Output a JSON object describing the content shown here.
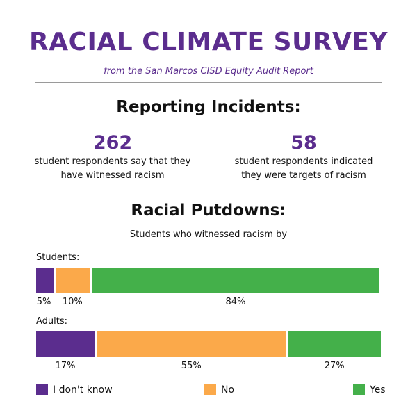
{
  "header": {
    "title": "RACIAL CLIMATE SURVEY",
    "subtitle": "from the San Marcos CISD Equity Audit Report"
  },
  "reporting": {
    "heading": "Reporting Incidents:",
    "stats": [
      {
        "number": "262",
        "line1": "student respondents say that they",
        "line2": "have witnessed racism"
      },
      {
        "number": "58",
        "line1": "student respondents indicated",
        "line2": "they were targets of racism"
      }
    ]
  },
  "colors": {
    "title": "#5b2d8e",
    "dont_know": "#5b2d8e",
    "no": "#fba94a",
    "yes": "#44b04a"
  },
  "chart_data": {
    "type": "bar",
    "orientation": "horizontal",
    "stacked": true,
    "title": "Racial Putdowns:",
    "subtitle": "Students who witnessed racism by",
    "categories": [
      "Students:",
      "Adults:"
    ],
    "series": [
      {
        "name": "I don't know",
        "values": [
          5,
          17
        ],
        "labels": [
          "5%",
          "17%"
        ]
      },
      {
        "name": "No",
        "values": [
          10,
          55
        ],
        "labels": [
          "10%",
          "55%"
        ]
      },
      {
        "name": "Yes",
        "values": [
          84,
          27
        ],
        "labels": [
          "84%",
          "27%"
        ]
      }
    ],
    "legend": "bottom",
    "grid": false
  }
}
